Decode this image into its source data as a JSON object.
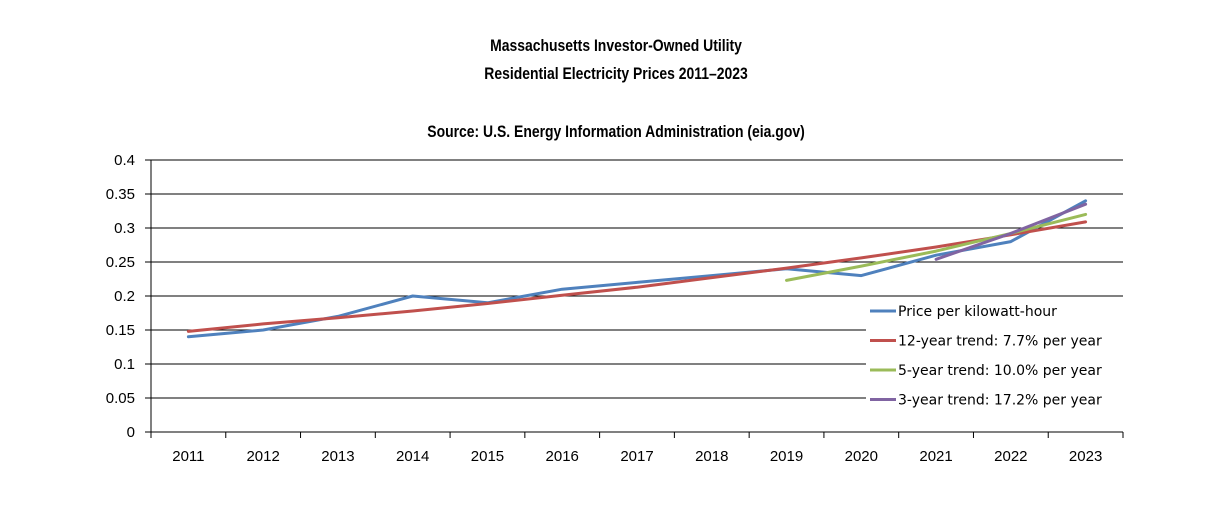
{
  "chart_data": {
    "type": "line",
    "title": "Massachusetts Investor-Owned Utility",
    "subtitle": "Residential Electricity Prices 2011–2023",
    "source": "Source: U.S. Energy Information Administration (eia.gov)",
    "xlabel": "",
    "ylabel": "",
    "ylim": [
      0,
      0.4
    ],
    "y_ticks": [
      "0",
      "0.05",
      "0.1",
      "0.15",
      "0.2",
      "0.25",
      "0.3",
      "0.35",
      "0.4"
    ],
    "categories": [
      "2011",
      "2012",
      "2013",
      "2014",
      "2015",
      "2016",
      "2017",
      "2018",
      "2019",
      "2020",
      "2021",
      "2022",
      "2023"
    ],
    "grid": "horizontal",
    "legend_position": "right",
    "series": [
      {
        "name": "Price per kilowatt-hour",
        "color": "#4f81bd",
        "x": [
          "2011",
          "2012",
          "2013",
          "2014",
          "2015",
          "2016",
          "2017",
          "2018",
          "2019",
          "2020",
          "2021",
          "2022",
          "2023"
        ],
        "values": [
          0.14,
          0.15,
          0.17,
          0.2,
          0.19,
          0.21,
          0.22,
          0.23,
          0.24,
          0.23,
          0.26,
          0.28,
          0.34
        ]
      },
      {
        "name": "12-year trend: 7.7% per year",
        "color": "#c0504d",
        "x": [
          "2011",
          "2012",
          "2013",
          "2014",
          "2015",
          "2016",
          "2017",
          "2018",
          "2019",
          "2020",
          "2021",
          "2022",
          "2023"
        ],
        "values": [
          0.148,
          0.159,
          0.168,
          0.178,
          0.189,
          0.201,
          0.213,
          0.227,
          0.241,
          0.256,
          0.272,
          0.29,
          0.309
        ]
      },
      {
        "name": "5-year trend: 10.0% per year",
        "color": "#9bbb59",
        "x": [
          "2019",
          "2020",
          "2021",
          "2022",
          "2023"
        ],
        "values": [
          0.223,
          0.244,
          0.266,
          0.292,
          0.32
        ]
      },
      {
        "name": "3-year trend: 17.2% per year",
        "color": "#8064a2",
        "x": [
          "2021",
          "2022",
          "2023"
        ],
        "values": [
          0.254,
          0.292,
          0.335
        ]
      }
    ]
  }
}
